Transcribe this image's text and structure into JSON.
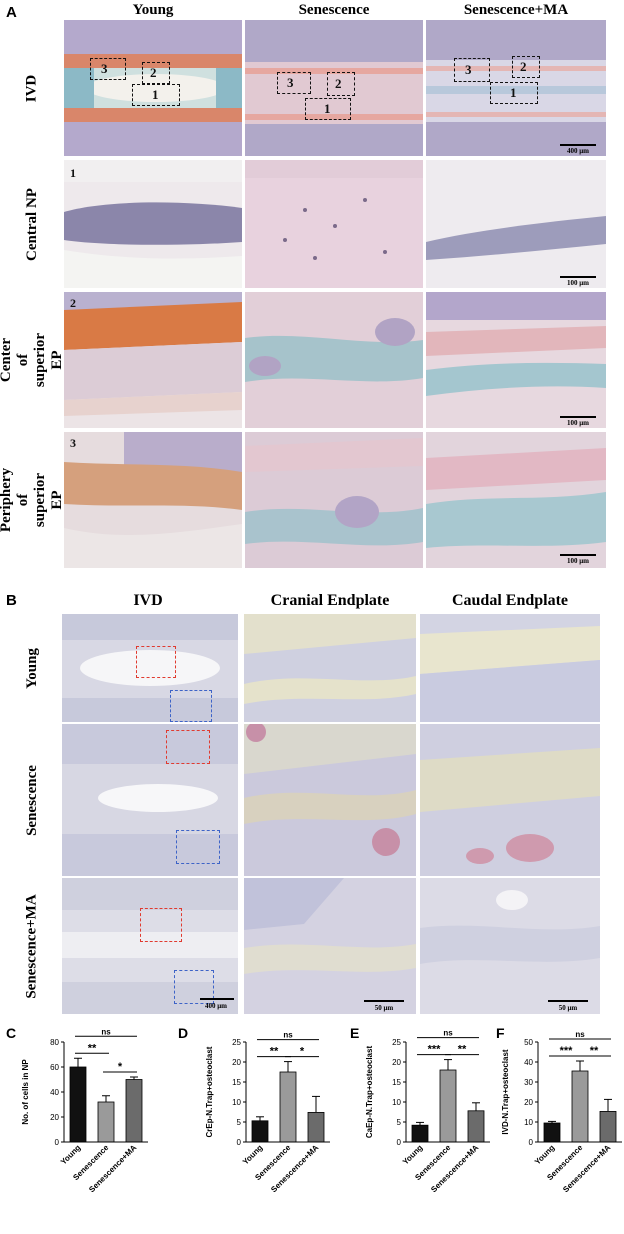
{
  "panelA": {
    "letter": "A",
    "columns": [
      "Young",
      "Senescence",
      "Senescence+MA"
    ],
    "rows": [
      "IVD",
      "Central  NP",
      "Center of superior EP",
      "Periphery of superior EP"
    ],
    "box_labels": [
      "1",
      "2",
      "3"
    ],
    "tile_numbers": [
      "1",
      "2",
      "3"
    ],
    "scale_ivd": "400 μm",
    "scale_zoom": "100 μm"
  },
  "panelB": {
    "letter": "B",
    "columns": [
      "IVD",
      "Cranial Endplate",
      "Caudal Endplate"
    ],
    "rows": [
      "Young",
      "Senescence",
      "Senescence+MA"
    ],
    "scale_ivd": "400 μm",
    "scale_zoom": "50 μm"
  },
  "colors": {
    "bar_young": "#111111",
    "bar_senescence": "#9a9a9a",
    "bar_ma": "#6b6b6b",
    "box_red": "#e03a2f",
    "box_blue": "#3d63c7"
  },
  "chart_data": [
    {
      "panel": "C",
      "type": "bar",
      "categories": [
        "Young",
        "Senescence",
        "Senescence+MA"
      ],
      "values": [
        60,
        32,
        50
      ],
      "errors": [
        7,
        5,
        2
      ],
      "ylabel": "No. of cells in NP",
      "ylim": [
        0,
        80
      ],
      "yticks": [
        0,
        20,
        40,
        60,
        80
      ],
      "comparisons": [
        {
          "from": 0,
          "to": 1,
          "label": "**"
        },
        {
          "from": 1,
          "to": 2,
          "label": "*"
        },
        {
          "from": 0,
          "to": 2,
          "label": "ns"
        }
      ]
    },
    {
      "panel": "D",
      "type": "bar",
      "categories": [
        "Young",
        "Senescence",
        "Senescence+MA"
      ],
      "values": [
        5.3,
        17.5,
        7.4
      ],
      "errors": [
        1.0,
        2.6,
        4.0
      ],
      "ylabel": "CrEp-N.Trap+osteoclast",
      "ylim": [
        0,
        25
      ],
      "yticks": [
        0,
        5,
        10,
        15,
        20,
        25
      ],
      "comparisons": [
        {
          "from": 0,
          "to": 1,
          "label": "**"
        },
        {
          "from": 1,
          "to": 2,
          "label": "*"
        },
        {
          "from": 0,
          "to": 2,
          "label": "ns"
        }
      ]
    },
    {
      "panel": "E",
      "type": "bar",
      "categories": [
        "Young",
        "Senescence",
        "Senescence+MA"
      ],
      "values": [
        4.2,
        18.0,
        7.8
      ],
      "errors": [
        0.7,
        2.6,
        2.0
      ],
      "ylabel": "CaEp-N.Trap+osteoclast",
      "ylim": [
        0,
        25
      ],
      "yticks": [
        0,
        5,
        10,
        15,
        20,
        25
      ],
      "comparisons": [
        {
          "from": 0,
          "to": 1,
          "label": "***"
        },
        {
          "from": 1,
          "to": 2,
          "label": "**"
        },
        {
          "from": 0,
          "to": 2,
          "label": "ns"
        }
      ]
    },
    {
      "panel": "F",
      "type": "bar",
      "categories": [
        "Young",
        "Senescence",
        "Senescence+MA"
      ],
      "values": [
        9.5,
        35.5,
        15.3
      ],
      "errors": [
        0.8,
        5.0,
        6.0
      ],
      "ylabel": "IVD-N.Trap+osteoclast",
      "ylim": [
        0,
        50
      ],
      "yticks": [
        0,
        10,
        20,
        30,
        40,
        50
      ],
      "comparisons": [
        {
          "from": 0,
          "to": 1,
          "label": "***"
        },
        {
          "from": 1,
          "to": 2,
          "label": "**"
        },
        {
          "from": 0,
          "to": 2,
          "label": "ns"
        }
      ]
    }
  ]
}
